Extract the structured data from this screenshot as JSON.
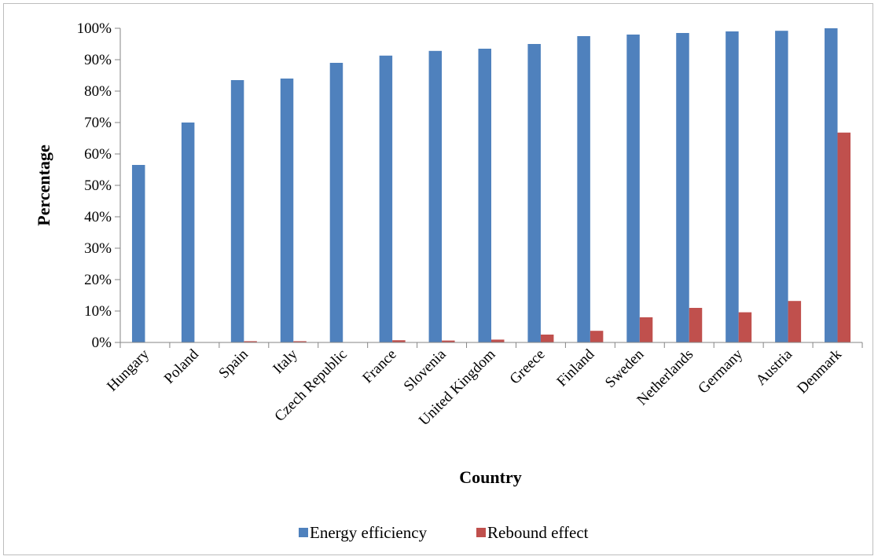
{
  "chart_data": {
    "type": "bar",
    "title": "",
    "xlabel": "Country",
    "ylabel": "Percentage",
    "ylim": [
      0,
      100
    ],
    "ytick_step": 10,
    "ytick_format": "{v}%",
    "grid": false,
    "legend": "bottom",
    "categories": [
      "Hungary",
      "Poland",
      "Spain",
      "Italy",
      "Czech Republic",
      "France",
      "Slovenia",
      "United Kingdom",
      "Greece",
      "Finland",
      "Sweden",
      "Netherlands",
      "Germany",
      "Austria",
      "Denmark"
    ],
    "series": [
      {
        "name": "Energy efficiency",
        "color": "#4f81bd",
        "values": [
          56.5,
          70.0,
          83.5,
          84.0,
          89.0,
          91.3,
          92.8,
          93.5,
          95.0,
          97.5,
          98.0,
          98.5,
          99.0,
          99.2,
          100.0
        ]
      },
      {
        "name": "Rebound effect",
        "color": "#c0504d",
        "values": [
          0.0,
          0.0,
          0.4,
          0.4,
          0.0,
          0.7,
          0.6,
          0.9,
          2.5,
          3.7,
          8.0,
          11.0,
          9.6,
          13.2,
          66.8
        ]
      }
    ]
  }
}
